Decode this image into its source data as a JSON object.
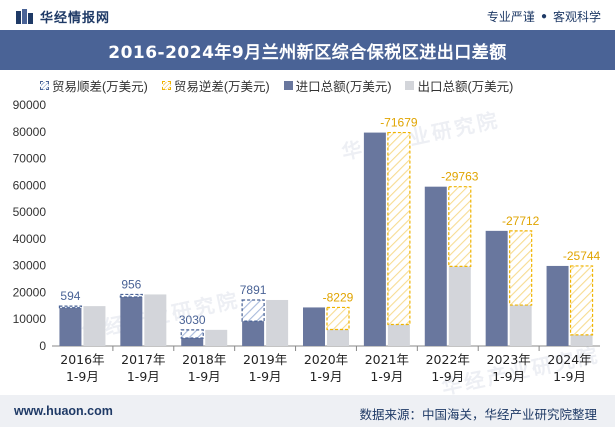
{
  "header": {
    "brand": "华经情报网",
    "tagline_left": "专业严谨",
    "tagline_right": "客观科学"
  },
  "title": "2016-2024年9月兰州新区综合保税区进出口差额",
  "legend": {
    "surplus": "贸易顺差(万美元)",
    "deficit": "贸易逆差(万美元)",
    "import": "进口总额(万美元)",
    "export": "出口总额(万美元)"
  },
  "watermark": "华经产业研究院",
  "footer": {
    "url": "www.huaon.com",
    "source": "数据来源：中国海关，华经产业研究院整理"
  },
  "colors": {
    "import": "#69779e",
    "export": "#d3d5da",
    "surplus": "#4a6396",
    "deficit": "#f0b400",
    "title_bg": "#4a6396"
  },
  "chart_data": {
    "type": "bar",
    "title": "2016-2024年9月兰州新区综合保税区进出口差额",
    "categories": [
      [
        "2016年",
        "1-9月"
      ],
      [
        "2017年",
        "1-9月"
      ],
      [
        "2018年",
        "1-9月"
      ],
      [
        "2019年",
        "1-9月"
      ],
      [
        "2020年",
        "1-9月"
      ],
      [
        "2021年",
        "1-9月"
      ],
      [
        "2022年",
        "1-9月"
      ],
      [
        "2023年",
        "1-9月"
      ],
      [
        "2024年",
        "1-9月"
      ]
    ],
    "series": [
      {
        "name": "进口总额(万美元)",
        "values": [
          14300,
          18300,
          3000,
          9300,
          14400,
          79700,
          59500,
          43000,
          29900
        ]
      },
      {
        "name": "出口总额(万美元)",
        "values": [
          14894,
          19256,
          6030,
          17191,
          6171,
          8021,
          29737,
          15288,
          4156
        ]
      }
    ],
    "balance": {
      "values": [
        594,
        956,
        3030,
        7891,
        -8229,
        -71679,
        -29763,
        -27712,
        -25744
      ],
      "labels": [
        "594",
        "956",
        "3030",
        "7891",
        "-8229",
        "-71679",
        "-29763",
        "-27712",
        "-25744"
      ]
    },
    "ylim": [
      0,
      90000
    ],
    "yticks": [
      0,
      10000,
      20000,
      30000,
      40000,
      50000,
      60000,
      70000,
      80000,
      90000
    ],
    "xlabel": "",
    "ylabel": ""
  }
}
